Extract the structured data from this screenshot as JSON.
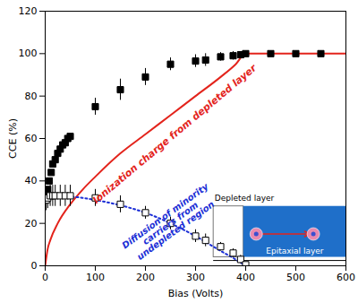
{
  "chart_data": {
    "type": "scatter",
    "x_label": "Bias (Volts)",
    "y_label": "CCE (%)",
    "xlim": [
      0,
      600
    ],
    "ylim": [
      0,
      120
    ],
    "xticks": [
      0,
      100,
      200,
      300,
      400,
      500,
      600
    ],
    "yticks": [
      0,
      20,
      40,
      60,
      80,
      100,
      120
    ],
    "grid": false,
    "series": [
      {
        "type": "line",
        "color": "#e3241c",
        "line_style": "solid",
        "x": [
          0,
          5,
          10,
          25,
          50,
          75,
          100,
          150,
          200,
          250,
          300,
          350,
          380,
          400,
          600
        ],
        "values": [
          0,
          8,
          12,
          20,
          29,
          36,
          42,
          53,
          62,
          71,
          80,
          89,
          95,
          100,
          100
        ]
      },
      {
        "type": "line",
        "color": "#1c2fd6",
        "line_style": "dotted",
        "x": [
          0,
          50,
          100,
          150,
          200,
          250,
          300,
          350,
          380,
          400
        ],
        "values": [
          32,
          32.5,
          31,
          28.5,
          25,
          20,
          14,
          7,
          3,
          0
        ]
      },
      {
        "type": "scatter",
        "color": "#000000",
        "marker": "square",
        "x": [
          2,
          5,
          8,
          12,
          15,
          20,
          25,
          30,
          35,
          40,
          45,
          50,
          100,
          150,
          200,
          250,
          300,
          320,
          350,
          375,
          390,
          400,
          450,
          500,
          550
        ],
        "values": [
          32,
          36,
          40,
          44,
          48,
          50,
          53,
          55,
          57,
          58,
          60,
          61,
          75,
          83,
          89,
          95,
          96.5,
          97,
          98.5,
          99,
          99.5,
          100,
          100,
          100,
          100
        ],
        "errors": [
          1,
          1,
          1,
          1,
          1,
          1,
          1,
          1,
          1,
          1,
          1,
          1,
          4,
          5,
          4,
          3,
          3,
          3,
          2,
          2,
          1,
          1,
          1,
          1,
          1
        ]
      },
      {
        "type": "scatter",
        "color": "#000000",
        "marker": "open square",
        "x": [
          2,
          5,
          10,
          15,
          20,
          30,
          40,
          50,
          100,
          150,
          200,
          250,
          300,
          320,
          350,
          375,
          390,
          400
        ],
        "values": [
          31,
          32,
          33,
          33,
          33,
          33,
          33,
          33,
          32,
          29,
          25,
          20,
          14,
          12,
          9,
          6,
          3,
          0.5
        ],
        "errors": [
          5,
          5,
          5,
          5,
          5,
          5,
          5,
          5,
          4,
          4,
          3,
          3,
          3,
          3,
          2,
          2,
          2,
          1
        ]
      }
    ],
    "annotations": [
      {
        "text": "Ionization charge from depleted layer",
        "color": "#e3241c"
      },
      {
        "text": "Diffusion of minority carriers from undepleted region",
        "color": "#1c2fd6"
      }
    ],
    "inset": {
      "labels": [
        "Depleted layer",
        "Epitaxial layer"
      ]
    }
  }
}
